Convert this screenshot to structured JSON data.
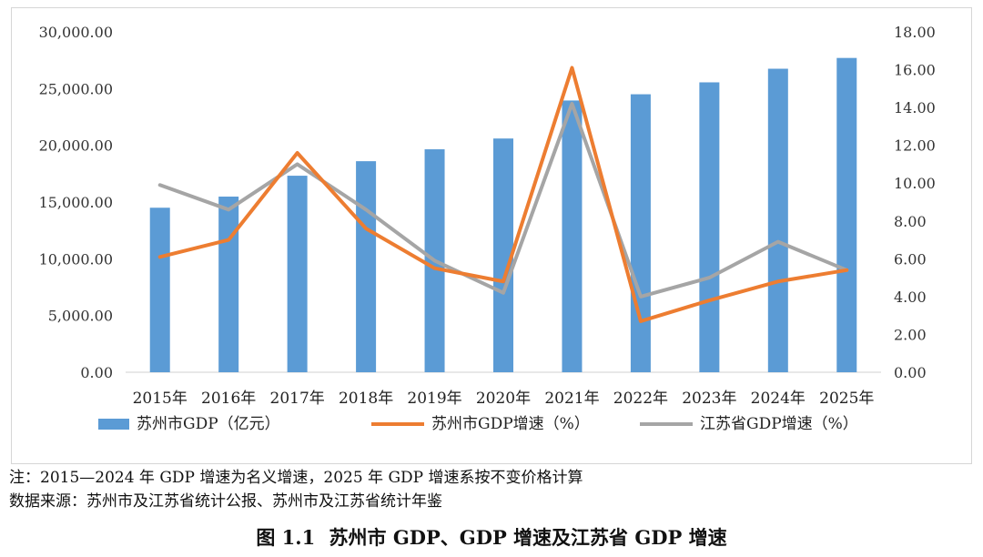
{
  "chart_data": {
    "type": "bar+line",
    "categories": [
      "2015年",
      "2016年",
      "2017年",
      "2018年",
      "2019年",
      "2020年",
      "2021年",
      "2022年",
      "2023年",
      "2024年",
      "2025年"
    ],
    "y_left": {
      "min": 0,
      "max": 30000,
      "step": 5000,
      "tick_labels": [
        "0.00",
        "5,000.00",
        "10,000.00",
        "15,000.00",
        "20,000.00",
        "25,000.00",
        "30,000.00"
      ]
    },
    "y_right": {
      "min": 0,
      "max": 18,
      "step": 2,
      "tick_labels": [
        "0.00",
        "2.00",
        "4.00",
        "6.00",
        "8.00",
        "10.00",
        "12.00",
        "14.00",
        "16.00",
        "18.00"
      ]
    },
    "series": [
      {
        "name": "苏州市GDP（亿元）",
        "kind": "bar",
        "axis": "left",
        "color": "#5B9BD5",
        "values": [
          14500,
          15480,
          17320,
          18600,
          19650,
          20600,
          23950,
          24500,
          25550,
          26750,
          27700
        ]
      },
      {
        "name": "苏州市GDP增速（%）",
        "kind": "line",
        "axis": "right",
        "color": "#ED7D31",
        "values": [
          6.1,
          7.0,
          11.6,
          7.6,
          5.5,
          4.8,
          16.1,
          2.7,
          3.8,
          4.8,
          5.4
        ]
      },
      {
        "name": "江苏省GDP增速（%）",
        "kind": "line",
        "axis": "right",
        "color": "#A5A5A5",
        "values": [
          9.9,
          8.6,
          11.0,
          8.6,
          5.9,
          4.2,
          14.2,
          4.0,
          5.0,
          6.9,
          5.4
        ]
      }
    ],
    "grid": false,
    "legend_position": "bottom"
  },
  "notes": {
    "line1": "注：2015—2024 年 GDP 增速为名义增速，2025 年 GDP 增速系按不变价格计算",
    "line2": "数据来源：苏州市及江苏省统计公报、苏州市及江苏省统计年鉴"
  },
  "caption": {
    "number": "图 1.1",
    "text": "苏州市 GDP、GDP 增速及江苏省 GDP 增速"
  }
}
